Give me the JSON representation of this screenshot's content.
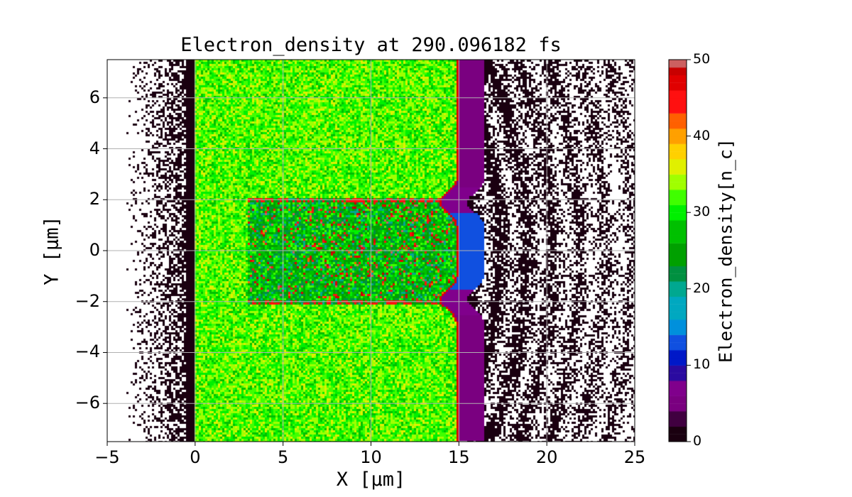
{
  "chart_data": {
    "type": "heatmap",
    "title": "Electron_density at 290.096182 fs",
    "xlabel": "X [μm]",
    "ylabel": "Y [μm]",
    "colorbar_label": "Electron_density[n_c]",
    "xlim": [
      -5,
      25
    ],
    "ylim": [
      -7.5,
      7.5
    ],
    "clim": [
      0,
      50
    ],
    "grid": true,
    "xticks": [
      "−5",
      "0",
      "5",
      "10",
      "15",
      "20",
      "25"
    ],
    "xtick_values": [
      -5,
      0,
      5,
      10,
      15,
      20,
      25
    ],
    "yticks": [
      "−6",
      "−4",
      "−2",
      "0",
      "2",
      "4",
      "6"
    ],
    "ytick_values": [
      -6,
      -4,
      -2,
      0,
      2,
      4,
      6
    ],
    "cticks": [
      "0",
      "10",
      "20",
      "30",
      "40",
      "50"
    ],
    "ctick_values": [
      0,
      10,
      20,
      30,
      40,
      50
    ],
    "colormap_stops": [
      [
        0,
        "#1a0010"
      ],
      [
        2,
        "#400040"
      ],
      [
        4,
        "#7a0080"
      ],
      [
        6,
        "#80008c"
      ],
      [
        8,
        "#2a0aa0"
      ],
      [
        10,
        "#0018c8"
      ],
      [
        12,
        "#1050e0"
      ],
      [
        14,
        "#0090dc"
      ],
      [
        16,
        "#00a8c0"
      ],
      [
        19,
        "#00a890"
      ],
      [
        21,
        "#009040"
      ],
      [
        23,
        "#00a000"
      ],
      [
        26,
        "#00c000"
      ],
      [
        29,
        "#00f000"
      ],
      [
        31,
        "#40ff00"
      ],
      [
        33,
        "#a0ff00"
      ],
      [
        35,
        "#e0f000"
      ],
      [
        37,
        "#ffd000"
      ],
      [
        39,
        "#ffa000"
      ],
      [
        41,
        "#ff6000"
      ],
      [
        43,
        "#ff1010"
      ],
      [
        46,
        "#e00000"
      ],
      [
        48,
        "#c80000"
      ],
      [
        49,
        "#cc6060"
      ],
      [
        50,
        "#ccaaaa"
      ]
    ],
    "regions": [
      {
        "name": "pre-target vacuum",
        "x": [
          -5,
          0
        ],
        "density": "0–2, sparse"
      },
      {
        "name": "target slab",
        "x": [
          0,
          15
        ],
        "y": [
          -7.5,
          7.5
        ],
        "density": 32
      },
      {
        "name": "laser channel",
        "x": [
          3,
          15
        ],
        "y": [
          -2,
          2
        ],
        "density": "20–50 with filaments"
      },
      {
        "name": "rear sheath",
        "x": [
          15,
          16.5
        ],
        "density": "3–8"
      },
      {
        "name": "expanding rings",
        "x": [
          16,
          25
        ],
        "density": "0–2, arc structures"
      }
    ]
  }
}
